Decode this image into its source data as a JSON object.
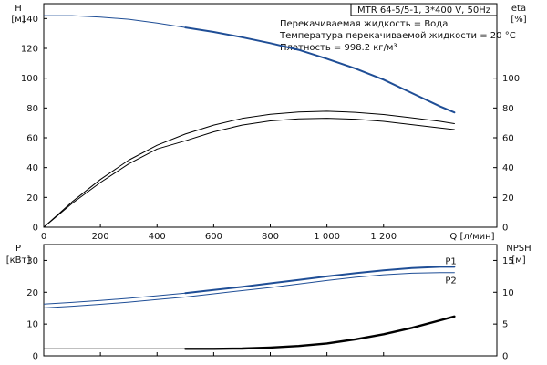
{
  "chart_data": [
    {
      "type": "line",
      "info_box": {
        "model": "MTR 64-5/5-1, 3*400 V, 50Hz",
        "lines": [
          "Перекачиваемая жидкость = Вода",
          "Температура перекачиваемой жидкости = 20 °C",
          "Плотность = 998.2 кг/м³"
        ]
      },
      "left_axis": {
        "label": "H",
        "unit": "[м]",
        "range": [
          0,
          150
        ],
        "ticks": [
          0,
          20,
          40,
          60,
          80,
          100,
          120,
          140
        ]
      },
      "right_axis": {
        "label": "eta",
        "unit": "[%]",
        "range": [
          0,
          150
        ],
        "ticks": [
          0,
          20,
          40,
          60,
          80,
          100
        ]
      },
      "x_axis": {
        "label": "Q [л/мин]",
        "range": [
          0,
          1600
        ],
        "ticks": [
          0,
          200,
          400,
          600,
          800,
          1000,
          1200
        ],
        "tick_labels": [
          "0",
          "200",
          "400",
          "600",
          "800",
          "1 000",
          "1 200"
        ]
      },
      "bold_from_x": 500,
      "series": [
        {
          "id": "H",
          "color": "#1f4e96",
          "stroke": 2,
          "x": [
            0,
            100,
            200,
            300,
            400,
            500,
            600,
            700,
            800,
            900,
            1000,
            1100,
            1200,
            1300,
            1400,
            1450
          ],
          "y": [
            142,
            142,
            141,
            139.5,
            137,
            134,
            131,
            127.5,
            123.5,
            119,
            113,
            106.5,
            99,
            90,
            81,
            77
          ]
        },
        {
          "id": "eta-1",
          "color": "#000000",
          "stroke": 1,
          "x": [
            0,
            100,
            200,
            300,
            400,
            500,
            600,
            700,
            800,
            900,
            1000,
            1100,
            1200,
            1300,
            1400,
            1450
          ],
          "y": [
            0,
            17,
            32,
            45,
            55,
            62.5,
            68.5,
            73,
            75.8,
            77.3,
            77.8,
            77.1,
            75.6,
            73.4,
            71,
            69.5
          ]
        },
        {
          "id": "eta-2",
          "color": "#000000",
          "stroke": 1,
          "x": [
            0,
            100,
            200,
            300,
            400,
            500,
            600,
            700,
            800,
            900,
            1000,
            1100,
            1200,
            1300,
            1400,
            1450
          ],
          "y": [
            0,
            16,
            30,
            42.5,
            52.5,
            58,
            64,
            68.5,
            71.3,
            72.7,
            73.1,
            72.5,
            71,
            68.8,
            66.6,
            65.5
          ]
        }
      ]
    },
    {
      "type": "line",
      "left_axis": {
        "label": "P",
        "unit": "[кВт]",
        "range": [
          0,
          35
        ],
        "ticks": [
          0,
          10,
          20,
          30
        ]
      },
      "right_axis": {
        "label": "NPSH",
        "unit": "[м]",
        "range": [
          0,
          17.5
        ],
        "ticks": [
          0,
          5,
          10,
          15
        ]
      },
      "x_axis": {
        "range": [
          0,
          1600
        ]
      },
      "bold_from_x": 500,
      "series": [
        {
          "id": "P1",
          "name": "P1",
          "color": "#1f4e96",
          "stroke": 2,
          "x": [
            0,
            100,
            200,
            300,
            400,
            500,
            600,
            700,
            800,
            900,
            1000,
            1100,
            1200,
            1300,
            1400,
            1450
          ],
          "y": [
            16.3,
            16.8,
            17.4,
            18.1,
            18.9,
            19.7,
            20.7,
            21.7,
            22.8,
            23.9,
            25,
            26,
            26.9,
            27.6,
            28,
            28
          ]
        },
        {
          "id": "P2",
          "name": "P2",
          "color": "#1f4e96",
          "stroke": 1,
          "x": [
            0,
            100,
            200,
            300,
            400,
            500,
            600,
            700,
            800,
            900,
            1000,
            1100,
            1200,
            1300,
            1400,
            1450
          ],
          "y": [
            15.1,
            15.6,
            16.2,
            16.9,
            17.7,
            18.5,
            19.5,
            20.5,
            21.5,
            22.6,
            23.7,
            24.7,
            25.5,
            26,
            26.2,
            26.2
          ]
        },
        {
          "id": "NPSH",
          "color": "#000000",
          "stroke": 2.4,
          "axis": "right",
          "x": [
            0,
            100,
            200,
            300,
            400,
            500,
            600,
            700,
            800,
            900,
            1000,
            1100,
            1200,
            1300,
            1400,
            1450
          ],
          "y": [
            1.1,
            1.1,
            1.1,
            1.1,
            1.1,
            1.1,
            1.1,
            1.15,
            1.3,
            1.55,
            1.95,
            2.6,
            3.4,
            4.4,
            5.6,
            6.2
          ]
        }
      ]
    }
  ]
}
